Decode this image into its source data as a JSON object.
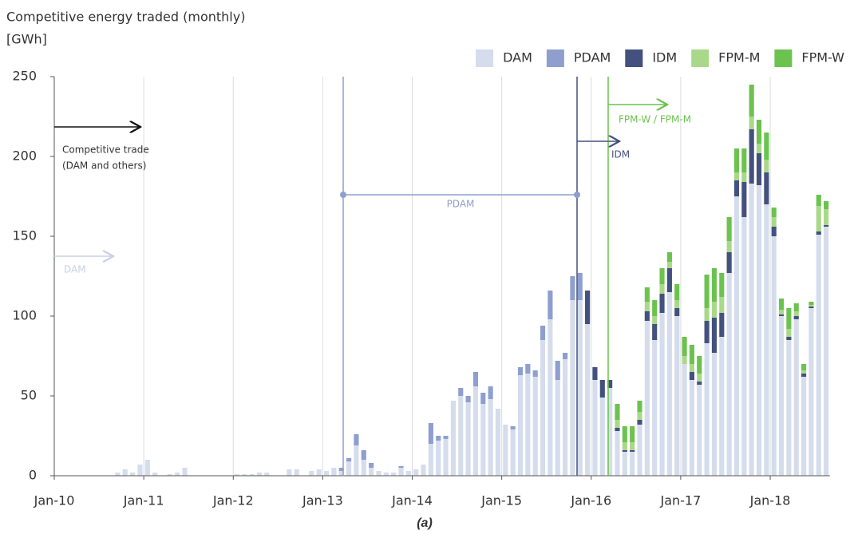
{
  "chart_data": {
    "type": "stacked_bar",
    "title": "Competitive energy traded (monthly)",
    "unit": "[GWh]",
    "caption": "(a)",
    "annotations": [
      "Competitive trade",
      "(DAM and others)",
      "DAM",
      "PDAM",
      "IDM",
      "FPM-W / FPM-M"
    ],
    "categories": [
      "Jan-10",
      null,
      null,
      null,
      null,
      null,
      null,
      null,
      null,
      null,
      null,
      null,
      "Jan-11",
      null,
      null,
      null,
      null,
      null,
      null,
      null,
      null,
      null,
      null,
      null,
      "Jan-12",
      null,
      null,
      null,
      null,
      null,
      null,
      null,
      null,
      null,
      null,
      null,
      "Jan-13",
      null,
      null,
      null,
      null,
      null,
      null,
      null,
      null,
      null,
      null,
      null,
      "Jan-14",
      null,
      null,
      null,
      null,
      null,
      null,
      null,
      null,
      null,
      null,
      null,
      "Jan-15",
      null,
      null,
      null,
      null,
      null,
      null,
      null,
      null,
      null,
      null,
      null,
      "Jan-16",
      null,
      null,
      null,
      null,
      null,
      null,
      null,
      null,
      null,
      null,
      null,
      "Jan-17",
      null,
      null,
      null,
      null,
      null,
      null,
      null,
      null,
      null,
      null,
      null,
      "Jan-18",
      null,
      null,
      null,
      null,
      null,
      null,
      null
    ],
    "series": [
      {
        "name": "DAM",
        "color": "#d5dcec",
        "values": [
          0,
          0,
          0,
          0,
          0,
          0,
          0,
          0,
          2,
          4,
          2,
          7,
          10,
          2,
          0,
          1,
          2,
          5,
          0,
          0,
          0,
          0,
          0,
          0,
          1,
          1,
          1,
          2,
          2,
          0,
          0,
          4,
          4,
          0,
          3,
          4,
          3,
          5,
          3,
          9,
          19,
          10,
          5,
          3,
          2,
          2,
          5,
          3,
          4,
          7,
          20,
          22,
          23,
          47,
          50,
          46,
          56,
          45,
          48,
          42,
          32,
          29,
          63,
          64,
          62,
          85,
          98,
          60,
          73,
          110,
          110,
          95,
          60,
          49,
          55,
          28,
          15,
          15,
          32,
          97,
          85,
          102,
          115,
          100,
          70,
          60,
          57,
          83,
          77,
          87,
          127,
          175,
          162,
          183,
          182,
          170,
          150,
          100,
          85,
          98,
          62,
          105,
          151,
          156
        ]
      },
      {
        "name": "PDAM",
        "color": "#8e9fcf",
        "values": [
          0,
          0,
          0,
          0,
          0,
          0,
          0,
          0,
          0,
          0,
          0,
          0,
          0,
          0,
          0,
          0,
          0,
          0,
          0,
          0,
          0,
          0,
          0,
          0,
          0,
          0,
          0,
          0,
          0,
          0,
          0,
          0,
          0,
          0,
          0,
          0,
          0,
          0,
          2,
          2,
          7,
          6,
          3,
          0,
          0,
          0,
          1,
          0,
          0,
          0,
          13,
          3,
          2,
          0,
          5,
          4,
          9,
          7,
          8,
          0,
          0,
          2,
          5,
          6,
          4,
          9,
          18,
          12,
          4,
          15,
          17,
          0,
          0,
          0,
          0,
          0,
          0,
          0,
          0,
          0,
          0,
          0,
          0,
          0,
          0,
          0,
          0,
          0,
          0,
          0,
          0,
          0,
          0,
          0,
          0,
          0,
          0,
          0,
          0,
          0,
          0,
          0,
          0,
          0
        ]
      },
      {
        "name": "IDM",
        "color": "#44517f",
        "values": [
          0,
          0,
          0,
          0,
          0,
          0,
          0,
          0,
          0,
          0,
          0,
          0,
          0,
          0,
          0,
          0,
          0,
          0,
          0,
          0,
          0,
          0,
          0,
          0,
          0,
          0,
          0,
          0,
          0,
          0,
          0,
          0,
          0,
          0,
          0,
          0,
          0,
          0,
          0,
          0,
          0,
          0,
          0,
          0,
          0,
          0,
          0,
          0,
          0,
          0,
          0,
          0,
          0,
          0,
          0,
          0,
          0,
          0,
          0,
          0,
          0,
          0,
          0,
          0,
          0,
          0,
          0,
          0,
          0,
          0,
          0,
          21,
          8,
          11,
          5,
          2,
          1,
          1,
          3,
          6,
          10,
          12,
          15,
          5,
          0,
          5,
          2,
          14,
          22,
          15,
          13,
          10,
          22,
          34,
          20,
          20,
          6,
          1,
          2,
          2,
          2,
          1,
          2,
          1
        ]
      },
      {
        "name": "FPM-M",
        "color": "#a9d88a",
        "values": [
          0,
          0,
          0,
          0,
          0,
          0,
          0,
          0,
          0,
          0,
          0,
          0,
          0,
          0,
          0,
          0,
          0,
          0,
          0,
          0,
          0,
          0,
          0,
          0,
          0,
          0,
          0,
          0,
          0,
          0,
          0,
          0,
          0,
          0,
          0,
          0,
          0,
          0,
          0,
          0,
          0,
          0,
          0,
          0,
          0,
          0,
          0,
          0,
          0,
          0,
          0,
          0,
          0,
          0,
          0,
          0,
          0,
          0,
          0,
          0,
          0,
          0,
          0,
          0,
          0,
          0,
          0,
          0,
          0,
          0,
          0,
          0,
          0,
          0,
          0,
          5,
          5,
          5,
          5,
          6,
          5,
          6,
          4,
          5,
          5,
          5,
          5,
          8,
          10,
          10,
          7,
          5,
          6,
          8,
          6,
          8,
          6,
          3,
          5,
          3,
          2,
          1,
          16,
          10
        ]
      },
      {
        "name": "FPM-W",
        "color": "#6cc24f",
        "values": [
          0,
          0,
          0,
          0,
          0,
          0,
          0,
          0,
          0,
          0,
          0,
          0,
          0,
          0,
          0,
          0,
          0,
          0,
          0,
          0,
          0,
          0,
          0,
          0,
          0,
          0,
          0,
          0,
          0,
          0,
          0,
          0,
          0,
          0,
          0,
          0,
          0,
          0,
          0,
          0,
          0,
          0,
          0,
          0,
          0,
          0,
          0,
          0,
          0,
          0,
          0,
          0,
          0,
          0,
          0,
          0,
          0,
          0,
          0,
          0,
          0,
          0,
          0,
          0,
          0,
          0,
          0,
          0,
          0,
          0,
          0,
          0,
          0,
          0,
          0,
          10,
          10,
          10,
          7,
          9,
          10,
          10,
          6,
          10,
          12,
          12,
          11,
          21,
          21,
          15,
          15,
          15,
          15,
          20,
          15,
          17,
          6,
          7,
          13,
          5,
          4,
          2,
          7,
          5
        ]
      }
    ],
    "ylim": [
      0,
      250
    ],
    "yticks": [
      0,
      50,
      100,
      150,
      200,
      250
    ],
    "xgrid": true,
    "legend": "top-right"
  }
}
